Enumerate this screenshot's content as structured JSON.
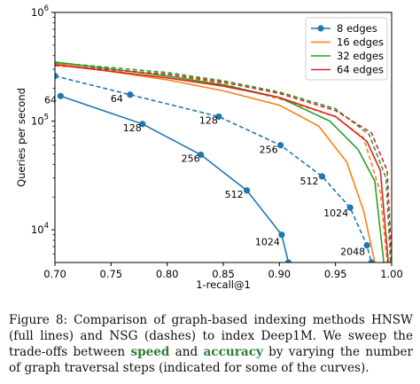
{
  "chart_data": {
    "type": "line",
    "xlabel": "1-recall@1",
    "ylabel": "Queries per second",
    "xlim": [
      0.7,
      1.0
    ],
    "ylim": [
      5000,
      1000000
    ],
    "yscale": "log",
    "xticks": [
      "0.70",
      "0.75",
      "0.80",
      "0.85",
      "0.90",
      "0.95",
      "1.00"
    ],
    "yticks": [
      {
        "value": 10000,
        "base": "10",
        "exp": "4"
      },
      {
        "value": 100000,
        "base": "10",
        "exp": "5"
      },
      {
        "value": 1000000,
        "base": "10",
        "exp": "6"
      }
    ],
    "legend_position": "top-right",
    "legend": [
      "8 edges",
      "16 edges",
      "32 edges",
      "64 edges"
    ],
    "series": [
      {
        "name": "8 edges",
        "method": "HNSW",
        "style": "solid",
        "color": "#1f77b4",
        "markers": true,
        "points": [
          [
            0.705,
            170000
          ],
          [
            0.778,
            94000
          ],
          [
            0.83,
            49000
          ],
          [
            0.871,
            23000
          ],
          [
            0.902,
            9000
          ],
          [
            0.908,
            5000
          ]
        ]
      },
      {
        "name": "8 edges",
        "method": "NSG",
        "style": "dashed",
        "color": "#1f77b4",
        "markers": true,
        "points": [
          [
            0.7,
            260000
          ],
          [
            0.767,
            175000
          ],
          [
            0.846,
            110000
          ],
          [
            0.901,
            60000
          ],
          [
            0.938,
            31000
          ],
          [
            0.963,
            16000
          ],
          [
            0.978,
            7200
          ],
          [
            0.982,
            5000
          ]
        ]
      },
      {
        "name": "16 edges",
        "method": "HNSW",
        "style": "solid",
        "color": "#ff7f0e",
        "markers": false,
        "points": [
          [
            0.7,
            340000
          ],
          [
            0.8,
            240000
          ],
          [
            0.85,
            190000
          ],
          [
            0.9,
            140000
          ],
          [
            0.935,
            90000
          ],
          [
            0.96,
            42000
          ],
          [
            0.975,
            15000
          ],
          [
            0.985,
            5000
          ]
        ]
      },
      {
        "name": "16 edges",
        "method": "NSG",
        "style": "dashed",
        "color": "#ff7f0e",
        "markers": false,
        "points": [
          [
            0.7,
            330000
          ],
          [
            0.8,
            270000
          ],
          [
            0.85,
            220000
          ],
          [
            0.9,
            160000
          ],
          [
            0.95,
            110000
          ],
          [
            0.975,
            70000
          ],
          [
            0.99,
            22000
          ],
          [
            0.996,
            5000
          ]
        ]
      },
      {
        "name": "32 edges",
        "method": "HNSW",
        "style": "solid",
        "color": "#2ca02c",
        "markers": false,
        "points": [
          [
            0.7,
            350000
          ],
          [
            0.8,
            260000
          ],
          [
            0.85,
            215000
          ],
          [
            0.9,
            165000
          ],
          [
            0.945,
            100000
          ],
          [
            0.97,
            55000
          ],
          [
            0.985,
            28000
          ],
          [
            0.993,
            5000
          ]
        ]
      },
      {
        "name": "32 edges",
        "method": "NSG",
        "style": "dashed",
        "color": "#2ca02c",
        "markers": false,
        "points": [
          [
            0.7,
            345000
          ],
          [
            0.8,
            280000
          ],
          [
            0.85,
            235000
          ],
          [
            0.9,
            185000
          ],
          [
            0.95,
            130000
          ],
          [
            0.98,
            75000
          ],
          [
            0.995,
            30000
          ],
          [
            0.999,
            5000
          ]
        ]
      },
      {
        "name": "64 edges",
        "method": "HNSW",
        "style": "solid",
        "color": "#d62728",
        "markers": false,
        "points": [
          [
            0.7,
            330000
          ],
          [
            0.8,
            250000
          ],
          [
            0.85,
            210000
          ],
          [
            0.9,
            165000
          ],
          [
            0.95,
            110000
          ],
          [
            0.978,
            65000
          ],
          [
            0.99,
            35000
          ],
          [
            0.997,
            5000
          ]
        ]
      },
      {
        "name": "64 edges",
        "method": "NSG",
        "style": "dashed",
        "color": "#d62728",
        "markers": false,
        "points": [
          [
            0.7,
            325000
          ],
          [
            0.8,
            270000
          ],
          [
            0.85,
            228000
          ],
          [
            0.9,
            180000
          ],
          [
            0.95,
            125000
          ],
          [
            0.982,
            78000
          ],
          [
            0.996,
            35000
          ],
          [
            1.0,
            5000
          ]
        ]
      }
    ],
    "annotations": [
      {
        "text": "64",
        "x": 0.705,
        "y": 170000,
        "series": "HNSW"
      },
      {
        "text": "128",
        "x": 0.778,
        "y": 94000,
        "series": "HNSW"
      },
      {
        "text": "256",
        "x": 0.83,
        "y": 49000,
        "series": "HNSW"
      },
      {
        "text": "512",
        "x": 0.871,
        "y": 23000,
        "series": "HNSW"
      },
      {
        "text": "1024",
        "x": 0.902,
        "y": 9000,
        "series": "HNSW"
      },
      {
        "text": "64",
        "x": 0.767,
        "y": 175000,
        "series": "NSG"
      },
      {
        "text": "128",
        "x": 0.846,
        "y": 110000,
        "series": "NSG"
      },
      {
        "text": "256",
        "x": 0.901,
        "y": 60000,
        "series": "NSG"
      },
      {
        "text": "512",
        "x": 0.938,
        "y": 31000,
        "series": "NSG"
      },
      {
        "text": "1024",
        "x": 0.963,
        "y": 16000,
        "series": "NSG"
      },
      {
        "text": "2048",
        "x": 0.978,
        "y": 7200,
        "series": "NSG"
      }
    ]
  },
  "caption": {
    "part1": "Figure 8:  Comparison of graph-based indexing methods HNSW (full lines) and NSG (dashes) to index Deep1M. We sweep the trade-offs between ",
    "speed": "speed",
    "part2": " and ",
    "accuracy": "accuracy",
    "part3": " by varying the number of graph traversal steps (indicated for some of the curves)."
  }
}
